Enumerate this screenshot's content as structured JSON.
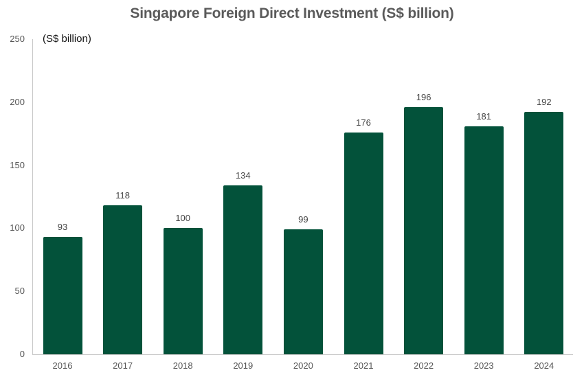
{
  "chart_data": {
    "type": "bar",
    "title": "Singapore Foreign Direct Investment  (S$ billion)",
    "unit_label": "(S$ billion)",
    "xlabel": "",
    "ylabel": "S$ billion",
    "ylim": [
      0,
      250
    ],
    "yticks": [
      0,
      50,
      100,
      150,
      200,
      250
    ],
    "grid": false,
    "legend": null,
    "bar_color": "#03523a",
    "categories": [
      "2016",
      "2017",
      "2018",
      "2019",
      "2020",
      "2021",
      "2022",
      "2023",
      "2024"
    ],
    "values": [
      93,
      118,
      100,
      134,
      99,
      176,
      196,
      181,
      192
    ]
  }
}
